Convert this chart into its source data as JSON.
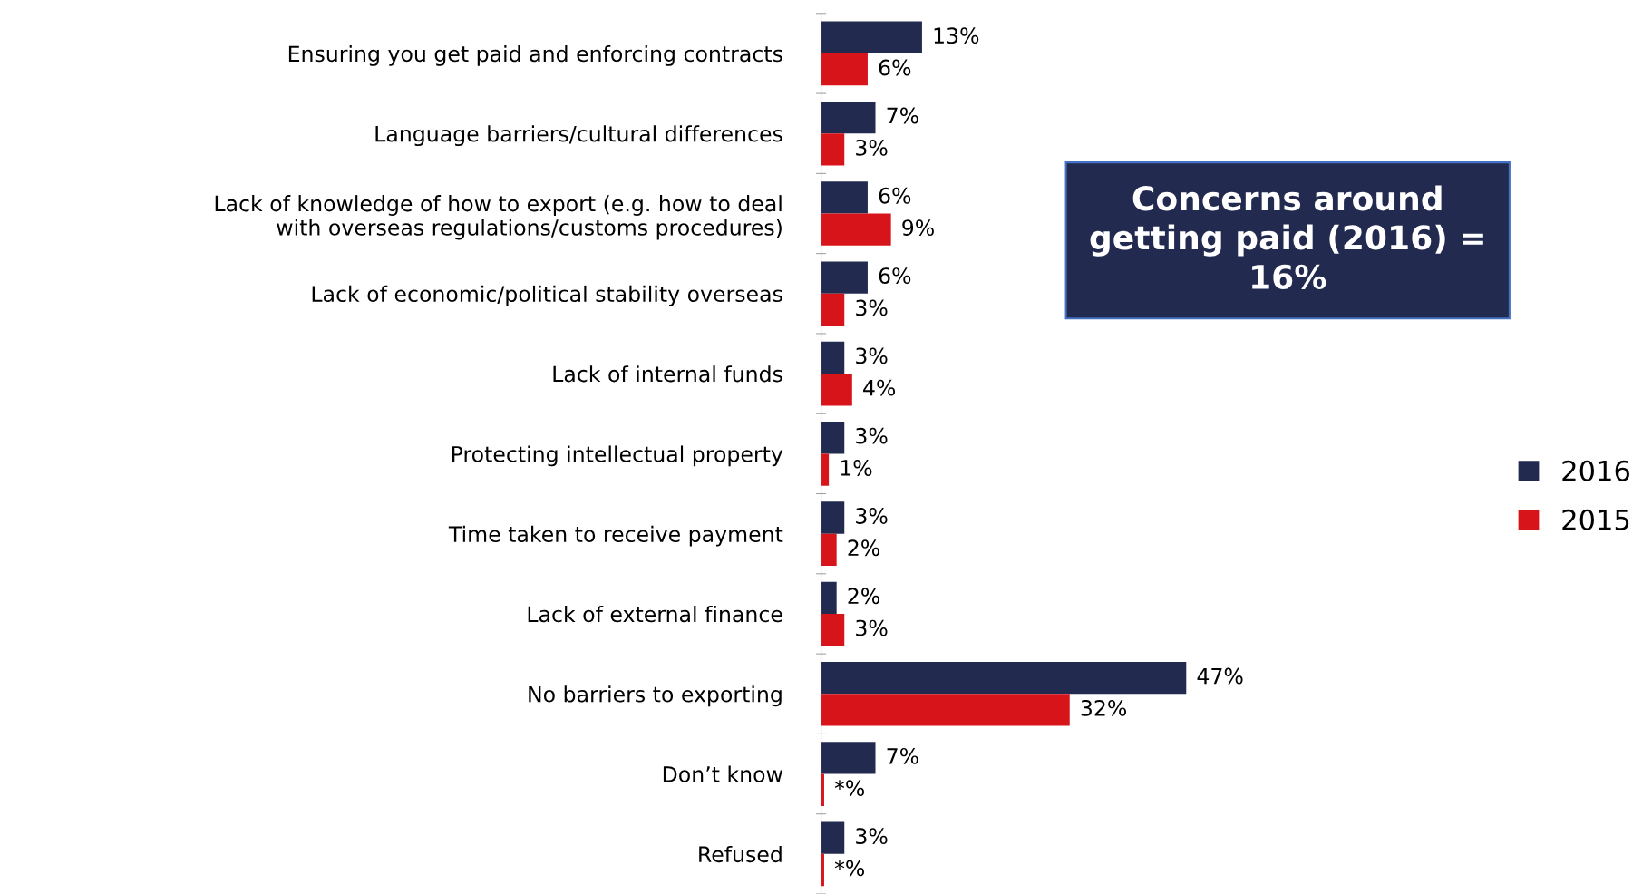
{
  "chart_data": {
    "type": "bar",
    "orientation": "horizontal",
    "categories": [
      "Ensuring you get paid and enforcing contracts",
      "Language barriers/cultural differences",
      "Lack of knowledge of how to export (e.g. how to deal\nwith overseas regulations/customs procedures)",
      "Lack of economic/political stability overseas",
      "Lack of internal funds",
      "Protecting intellectual property",
      "Time taken to receive payment",
      "Lack of external finance",
      "No barriers to exporting",
      "Don’t know",
      "Refused"
    ],
    "series": [
      {
        "name": "2016",
        "color": "#232a4f",
        "values": [
          13,
          7,
          6,
          6,
          3,
          3,
          3,
          2,
          47,
          7,
          3
        ],
        "value_labels": [
          "13%",
          "7%",
          "6%",
          "6%",
          "3%",
          "3%",
          "3%",
          "2%",
          "47%",
          "7%",
          "3%"
        ]
      },
      {
        "name": "2015",
        "color": "#d7141a",
        "values": [
          6,
          3,
          9,
          3,
          4,
          1,
          2,
          3,
          32,
          0.4,
          0.4
        ],
        "value_labels": [
          "6%",
          "3%",
          "9%",
          "3%",
          "4%",
          "1%",
          "2%",
          "3%",
          "32%",
          "*%",
          "*%"
        ]
      }
    ],
    "annotations": [
      "Concerns around\ngetting paid (2016) =\n16%"
    ],
    "legend": "right",
    "grid": false
  }
}
